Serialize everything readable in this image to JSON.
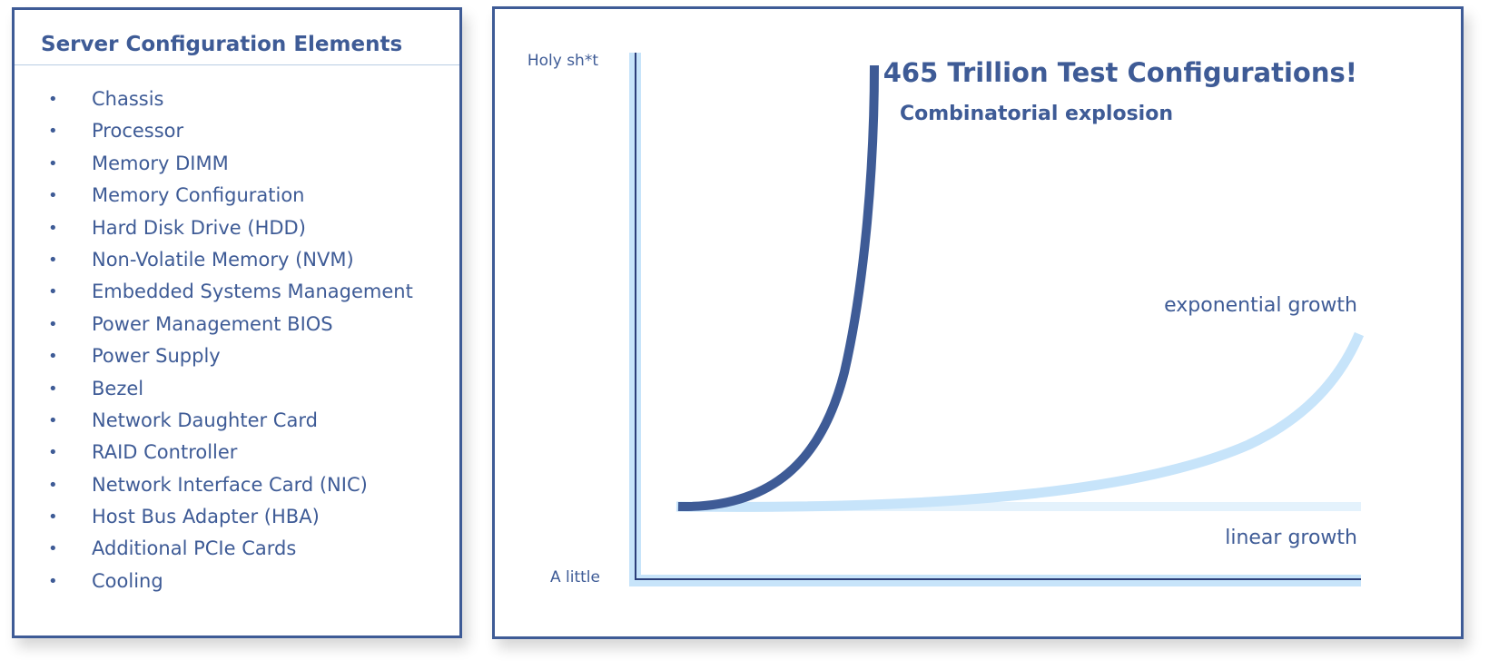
{
  "config_panel": {
    "title": "Server Configuration Elements",
    "bullet_glyph": "•",
    "items": [
      "Chassis",
      "Processor",
      "Memory DIMM",
      "Memory Configuration",
      "Hard Disk Drive (HDD)",
      "Non-Volatile Memory (NVM)",
      "Embedded Systems Management",
      "Power Management BIOS",
      "Power Supply",
      "Bezel",
      "Network Daughter Card",
      "RAID Controller",
      "Network Interface Card (NIC)",
      "Host Bus Adapter (HBA)",
      "Additional PCIe Cards",
      "Cooling"
    ]
  },
  "growth_diagram": {
    "headline": "465 Trillion Test Configurations!",
    "subheadline": "Combinatorial explosion",
    "y_axis_top_label": "Holy sh*t",
    "y_axis_bottom_label": "A little",
    "curves": {
      "combinatorial": {
        "label": "",
        "color": "#3e5b96"
      },
      "exponential": {
        "label": "exponential growth",
        "color": "#c7e4fa"
      },
      "linear": {
        "label": "linear growth",
        "color": "#e4f2fc"
      }
    },
    "colors": {
      "primary": "#3e5b96",
      "axis_light": "#c7e4fa",
      "axis_dark": "#2c3f7a",
      "border": "#3e5b96"
    }
  }
}
